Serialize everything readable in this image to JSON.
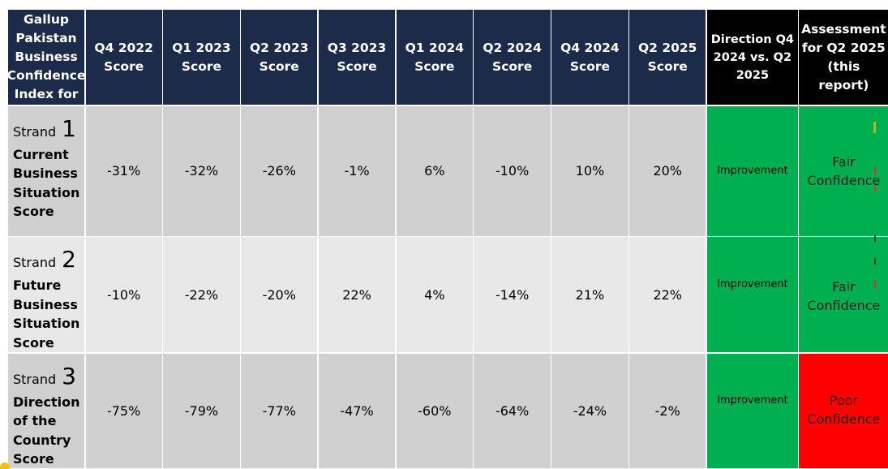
{
  "header": {
    "first_col": "Gallup Pakistan Business Confidence Index for",
    "periods": [
      "Q4 2022 Score",
      "Q1 2023 Score",
      "Q2 2023 Score",
      "Q3 2023 Score",
      "Q1 2024 Score",
      "Q2 2024 Score",
      "Q4 2024 Score",
      "Q2 2025 Score"
    ],
    "direction": "Direction Q4 2024 vs. Q2 2025",
    "assessment": "Assessment for Q2 2025 (this report)"
  },
  "rows": [
    {
      "strand_word": "Strand",
      "strand_num": "1",
      "title": "Current Business Situation Score",
      "values": [
        "-31%",
        "-32%",
        "-26%",
        "-1%",
        "6%",
        "-10%",
        "10%",
        "20%"
      ],
      "direction": "Improvement",
      "assessment": "Fair Confidence",
      "assessment_color": "#00b050"
    },
    {
      "strand_word": "Strand",
      "strand_num": "2",
      "title": "Future Business Situation Score",
      "values": [
        "-10%",
        "-22%",
        "-20%",
        "22%",
        "4%",
        "-14%",
        "21%",
        "22%"
      ],
      "direction": "Improvement",
      "assessment": "Fair Confidence",
      "assessment_color": "#00b050"
    },
    {
      "strand_word": "Strand",
      "strand_num": "3",
      "title": "Direction of the Country Score",
      "values": [
        "-75%",
        "-79%",
        "-77%",
        "-47%",
        "-60%",
        "-64%",
        "-24%",
        "-2%"
      ],
      "direction": "Improvement",
      "assessment": "Poor Confidence",
      "assessment_color": "#ff0000"
    }
  ],
  "colors": {
    "header_bg": "#1d2b4a",
    "header_dark_bg": "#000000",
    "row_gray": "#d0d0d0",
    "row_light": "#e8e8e8",
    "improvement_bg": "#00b050"
  }
}
